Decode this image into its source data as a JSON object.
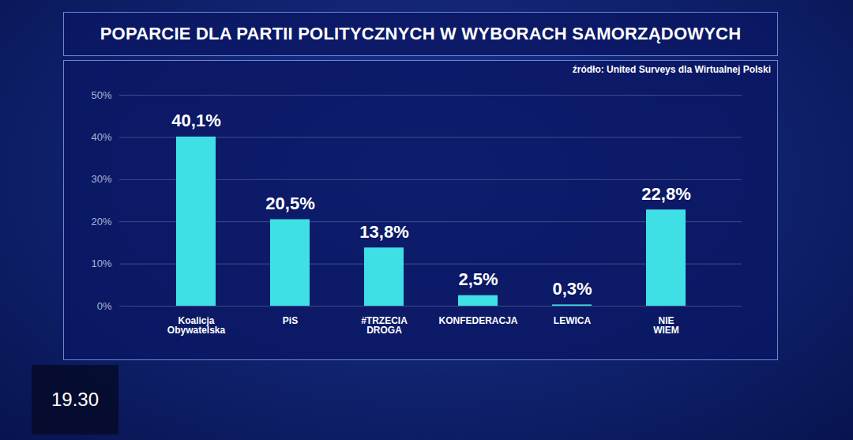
{
  "chart_data": {
    "type": "bar",
    "title": "POPARCIE DLA PARTII POLITYCZNYCH W WYBORACH SAMORZĄDOWYCH",
    "source": "źródło: United Surveys dla Wirtualnej Polski",
    "categories": [
      "Koalicja Obywatelska",
      "PiS",
      "#TRZECIA DROGA",
      "KONFEDERACJA",
      "LEWICA",
      "NIE WIEM"
    ],
    "values": [
      40.1,
      20.5,
      13.8,
      2.5,
      0.3,
      22.8
    ],
    "value_labels": [
      "40,1%",
      "20,5%",
      "13,8%",
      "2,5%",
      "0,3%",
      "22,8%"
    ],
    "color": "#3ee0e6",
    "ylim": [
      0,
      50
    ],
    "yticks": [
      {
        "value": 0,
        "label": "0%"
      },
      {
        "value": 10,
        "label": "10%"
      },
      {
        "value": 20,
        "label": "20%"
      },
      {
        "value": 30,
        "label": "30%"
      },
      {
        "value": 40,
        "label": "40%"
      },
      {
        "value": 50,
        "label": "50%"
      }
    ],
    "grid": true,
    "data_labels": true,
    "annotations": [
      "19.30"
    ]
  }
}
